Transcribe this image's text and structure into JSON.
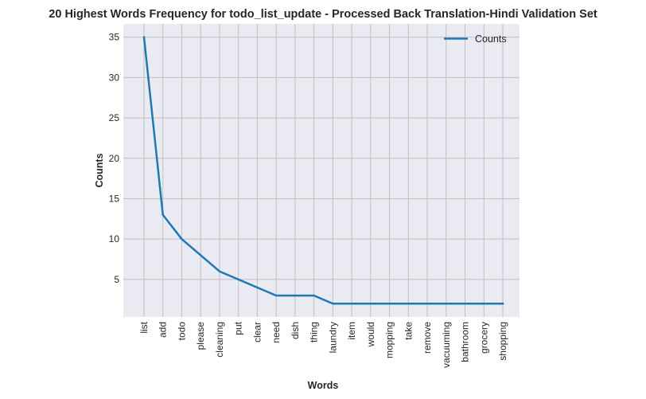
{
  "chart_data": {
    "type": "line",
    "title": "20 Highest Words Frequency for todo_list_update - Processed Back Translation-Hindi Validation Set",
    "xlabel": "Words",
    "ylabel": "Counts",
    "categories": [
      "list",
      "add",
      "todo",
      "please",
      "cleaning",
      "put",
      "clear",
      "need",
      "dish",
      "thing",
      "laundry",
      "item",
      "would",
      "mopping",
      "take",
      "remove",
      "vacuuming",
      "bathroom",
      "grocery",
      "shopping"
    ],
    "series": [
      {
        "name": "Counts",
        "values": [
          35,
          13,
          10,
          8,
          6,
          5,
          4,
          3,
          3,
          3,
          2,
          2,
          2,
          2,
          2,
          2,
          2,
          2,
          2,
          2
        ],
        "color": "#1f77b4"
      }
    ],
    "ylim": [
      0.35,
      36.65
    ],
    "yticks": [
      5,
      10,
      15,
      20,
      25,
      30,
      35
    ],
    "grid": true,
    "legend_position": "top-right",
    "background": "#eaeaf2",
    "grid_color": "#c0c0c0"
  }
}
